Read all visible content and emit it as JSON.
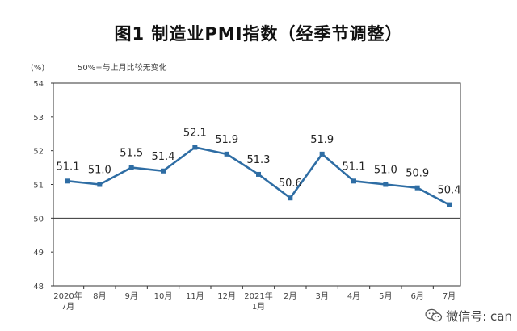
{
  "title": "图1 制造业PMI指数（经季节调整）",
  "watermark_text": "微信号: can",
  "chart_data": {
    "type": "line",
    "title": "图1 制造业PMI指数（经季节调整）",
    "unit_label": "(%)",
    "note": "50%=与上月比较无变化",
    "categories": [
      [
        "2020年",
        "7月"
      ],
      [
        "8月"
      ],
      [
        "9月"
      ],
      [
        "10月"
      ],
      [
        "11月"
      ],
      [
        "12月"
      ],
      [
        "2021年",
        "1月"
      ],
      [
        "2月"
      ],
      [
        "3月"
      ],
      [
        "4月"
      ],
      [
        "5月"
      ],
      [
        "6月"
      ],
      [
        "7月"
      ]
    ],
    "series": [
      {
        "values": [
          51.1,
          51.0,
          51.5,
          51.4,
          52.1,
          51.9,
          51.3,
          50.6,
          51.9,
          51.1,
          51.0,
          50.9,
          50.4
        ]
      }
    ],
    "data_labels": [
      "51.1",
      "51.0",
      "51.5",
      "51.4",
      "52.1",
      "51.9",
      "51.3",
      "50.6",
      "51.9",
      "51.1",
      "51.0",
      "50.9",
      "50.4"
    ],
    "ylim": [
      48,
      54
    ],
    "yticks": [
      48,
      49,
      50,
      51,
      52,
      53,
      54
    ],
    "baseline": 50,
    "grid": false,
    "line_color": "#2e6da4"
  }
}
